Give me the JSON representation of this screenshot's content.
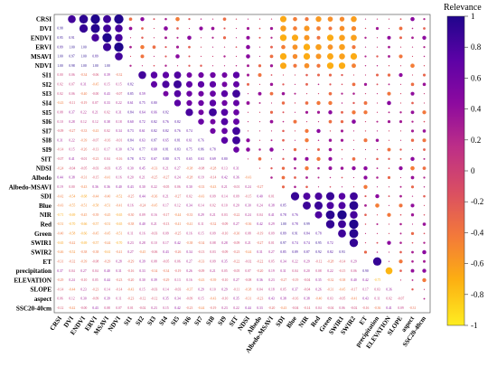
{
  "chart_data": {
    "type": "heatmap",
    "subtype": "correlation-matrix",
    "variables": [
      "CRSI",
      "DVI",
      "ENDVI",
      "ERVI",
      "MSAVI",
      "NDVI",
      "SI1",
      "SI2",
      "SI3",
      "SI4",
      "SI5",
      "SI6",
      "SI7",
      "SI8",
      "SI9",
      "SIT",
      "NDSI",
      "Albedo",
      "Albedo-MSAVI",
      "SDI",
      "Blue",
      "NIR",
      "Red",
      "Green",
      "SWIR1",
      "SWIR2",
      "ET",
      "precipitation",
      "ELEVATION",
      "SLOPE",
      "aspect",
      "SSC20-40cm"
    ],
    "upper_triangle": "circles sized and coloured by correlation",
    "lower_triangle": "correlation coefficients printed as numbers",
    "colorbar": {
      "title": "Relevance",
      "range": [
        -1,
        1
      ],
      "ticks": [
        "1",
        "0.8",
        "0.6",
        "0.4",
        "0.2",
        "0",
        "-0.2",
        "-0.4",
        "-0.6",
        "-0.8",
        "-1"
      ],
      "colors": [
        "#feed21",
        "#fcae12",
        "#f3793a",
        "#da4f62",
        "#bc2e88",
        "#8c0a9f",
        "#5c02a6",
        "#20058c"
      ]
    },
    "blocks": [
      {
        "vars": [
          "CRSI",
          "DVI",
          "ENDVI",
          "ERVI",
          "MSAVI",
          "NDVI"
        ],
        "r": 0.96
      },
      {
        "vars": [
          "SI1",
          "SI2",
          "SI3",
          "SI4",
          "SI5",
          "SI6",
          "SI7",
          "SI8",
          "SI9",
          "SIT"
        ],
        "r": 0.72
      },
      {
        "vars": [
          "SDI",
          "Blue",
          "NIR",
          "Red",
          "Green",
          "SWIR1",
          "SWIR2"
        ],
        "r": 0.85
      }
    ],
    "cross_block_r": -0.55,
    "strong_pairs": [
      {
        "pair": [
          "ET",
          "precipitation"
        ],
        "r": 0.9
      },
      {
        "pair": [
          "precipitation",
          "ELEVATION"
        ],
        "r": -0.75
      }
    ]
  }
}
